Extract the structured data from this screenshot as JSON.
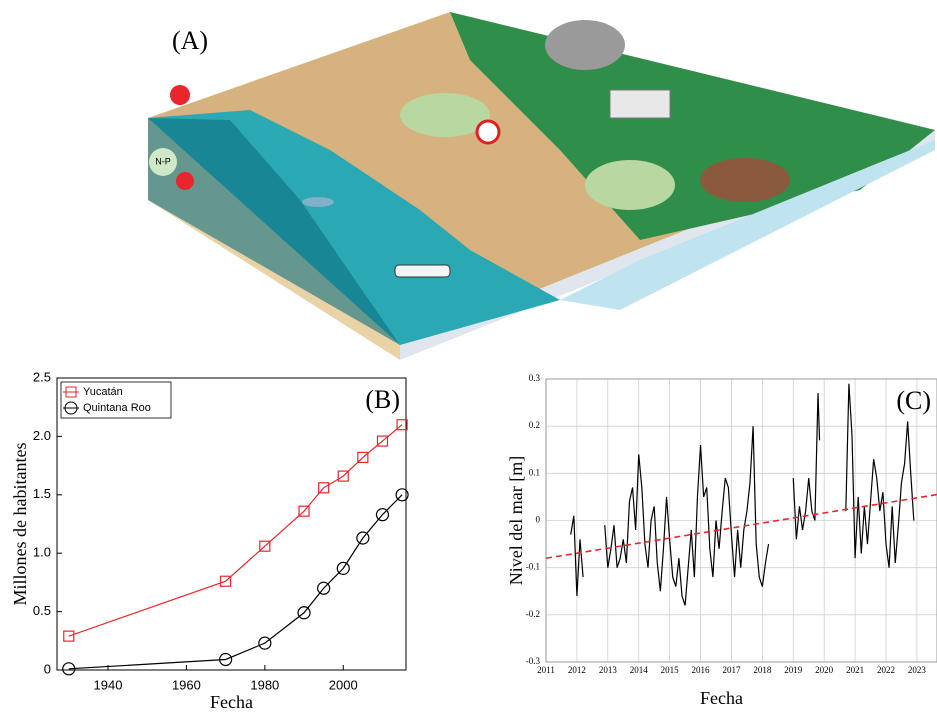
{
  "figure": {
    "panel_label": "(A)",
    "illustration_labels": [
      "N-P"
    ]
  },
  "chart_data": [
    {
      "type": "line",
      "panel_label": "(B)",
      "xlabel": "Fecha",
      "ylabel": "Millones de habitantes",
      "x": [
        1930,
        1970,
        1980,
        1990,
        1995,
        2000,
        2005,
        2010,
        2015
      ],
      "series": [
        {
          "name": "Yucatán",
          "color": "#e8262c",
          "marker": "square",
          "values": [
            0.29,
            0.76,
            1.06,
            1.36,
            1.56,
            1.66,
            1.82,
            1.96,
            2.1
          ]
        },
        {
          "name": "Quintana Roo",
          "color": "#000000",
          "marker": "circle",
          "values": [
            0.01,
            0.09,
            0.23,
            0.49,
            0.7,
            0.87,
            1.13,
            1.33,
            1.5
          ]
        }
      ],
      "xlim": [
        1927,
        2016
      ],
      "xticks": [
        1940,
        1960,
        1980,
        2000
      ],
      "ylim": [
        0,
        2.5
      ],
      "yticks": [
        0,
        0.5,
        {
          "value": 1,
          "label": "1.0"
        },
        1.5,
        {
          "value": 2,
          "label": "2.0"
        },
        2.5
      ],
      "legend": "upper left",
      "grid": false
    },
    {
      "type": "line",
      "panel_label": "(C)",
      "xlabel": "Fecha",
      "ylabel": "Nivel del mar [m]",
      "series": [
        {
          "color": "#000000",
          "x": [
            2011.8,
            2011.9,
            2012.0,
            2012.1,
            2012.2,
            2012.5,
            2012.9,
            2013.0,
            2013.1,
            2013.2,
            2013.3,
            2013.4,
            2013.5,
            2013.6,
            2013.7,
            2013.8,
            2013.9,
            2014.0,
            2014.1,
            2014.2,
            2014.3,
            2014.4,
            2014.5,
            2014.6,
            2014.7,
            2014.8,
            2014.9,
            2015.0,
            2015.1,
            2015.2,
            2015.3,
            2015.4,
            2015.5,
            2015.6,
            2015.7,
            2015.8,
            2015.9,
            2016.0,
            2016.1,
            2016.2,
            2016.3,
            2016.4,
            2016.5,
            2016.6,
            2016.7,
            2016.8,
            2016.9,
            2017.0,
            2017.1,
            2017.2,
            2017.3,
            2017.4,
            2017.5,
            2017.6,
            2017.7,
            2017.8,
            2017.9,
            2018.0,
            2018.1,
            2018.2,
            2018.6,
            2019.0,
            2019.1,
            2019.2,
            2019.3,
            2019.4,
            2019.5,
            2019.6,
            2019.7,
            2019.8,
            2019.85,
            2020.3,
            2020.7,
            2020.8,
            2020.9,
            2021.0,
            2021.1,
            2021.2,
            2021.3,
            2021.4,
            2021.5,
            2021.6,
            2021.7,
            2021.8,
            2021.9,
            2022.0,
            2022.1,
            2022.2,
            2022.3,
            2022.4,
            2022.5,
            2022.6,
            2022.7,
            2022.8,
            2022.9
          ],
          "values": [
            -0.03,
            0.01,
            -0.16,
            -0.04,
            -0.12,
            null,
            -0.01,
            -0.1,
            -0.06,
            -0.01,
            -0.1,
            -0.08,
            -0.04,
            -0.09,
            0.04,
            0.07,
            -0.02,
            0.14,
            0.07,
            -0.05,
            -0.1,
            0.0,
            0.03,
            -0.09,
            -0.15,
            -0.06,
            0.05,
            -0.04,
            -0.12,
            -0.14,
            -0.08,
            -0.16,
            -0.18,
            -0.1,
            -0.02,
            -0.12,
            0.05,
            0.16,
            0.05,
            0.07,
            -0.06,
            -0.12,
            0.0,
            -0.06,
            0.02,
            0.09,
            0.07,
            -0.03,
            -0.12,
            -0.02,
            -0.1,
            -0.02,
            0.02,
            0.08,
            0.2,
            -0.05,
            -0.12,
            -0.14,
            -0.09,
            -0.05,
            null,
            0.09,
            -0.04,
            0.03,
            -0.02,
            0.02,
            0.09,
            0.02,
            0.0,
            0.27,
            0.17,
            null,
            0.02,
            0.29,
            0.18,
            -0.08,
            0.05,
            -0.07,
            0.03,
            -0.05,
            0.04,
            0.13,
            0.09,
            0.02,
            0.06,
            -0.05,
            -0.1,
            0.03,
            -0.09,
            -0.01,
            0.08,
            0.12,
            0.21,
            0.1,
            0.0
          ]
        },
        {
          "color": "#e8262c",
          "dash": true,
          "x": [
            2011,
            2023.65
          ],
          "values": [
            -0.08,
            0.055
          ]
        }
      ],
      "xlim": [
        2011,
        2023.65
      ],
      "xticks": [
        2011,
        2012,
        2013,
        2014,
        2015,
        2016,
        2017,
        2018,
        2019,
        2020,
        2021,
        2022,
        2023
      ],
      "ylim": [
        -0.3,
        0.3
      ],
      "yticks": [
        -0.3,
        -0.2,
        -0.1,
        0,
        0.1,
        0.2,
        0.3
      ],
      "grid": true
    }
  ]
}
